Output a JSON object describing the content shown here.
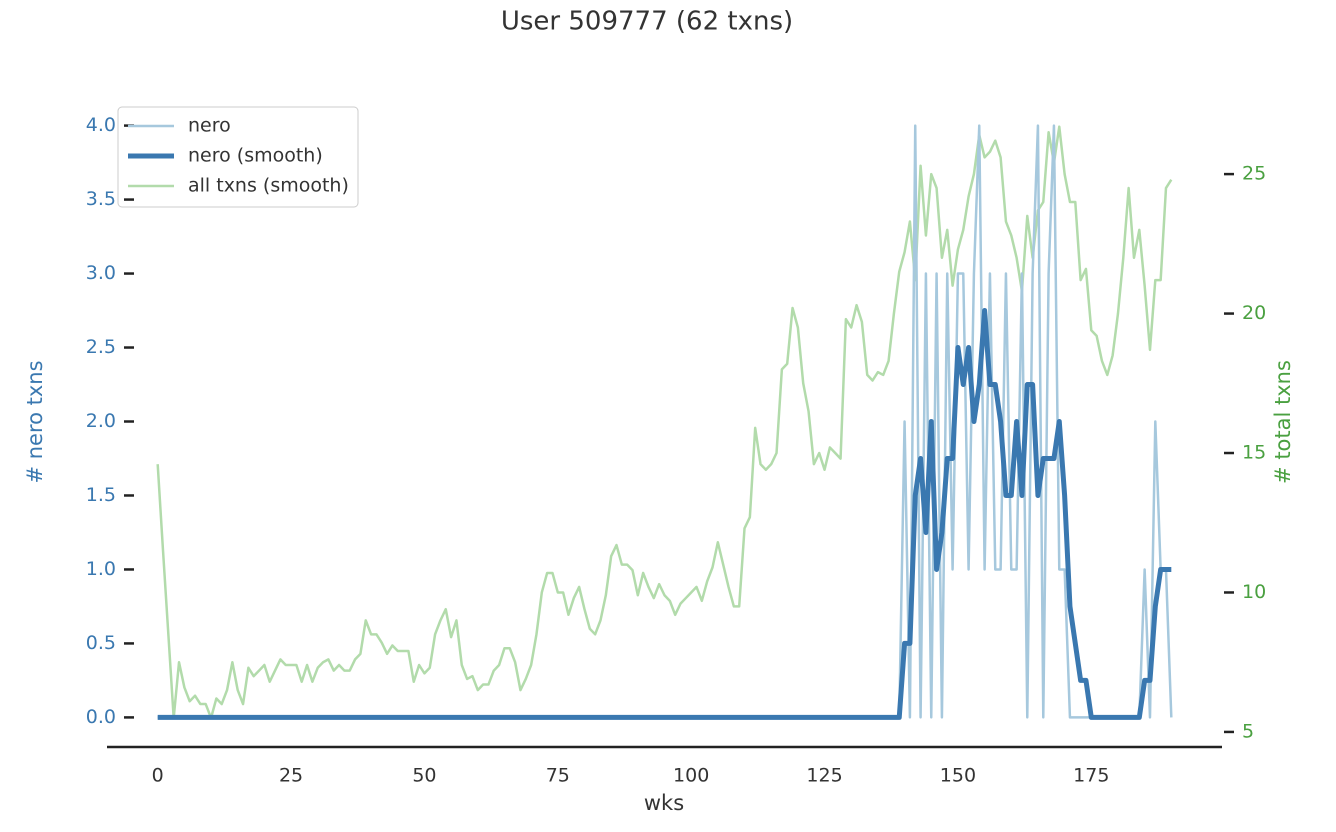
{
  "chart_data": {
    "type": "line",
    "title": "User 509777 (62 txns)",
    "xlabel": "wks",
    "ylabel": "# nero txns",
    "y2label": "# total txns",
    "ylabel_color": "#3a78b0",
    "y2label_color": "#4aa040",
    "xlim": [
      -9.5,
      199.5
    ],
    "ylim": [
      -0.2,
      4.2
    ],
    "y2lim": [
      4.46,
      27.8
    ],
    "xticks": [
      0,
      25,
      50,
      75,
      100,
      125,
      150,
      175
    ],
    "yticks": [
      {
        "value": 0,
        "label": "0.0"
      },
      0.5,
      {
        "value": 1,
        "label": "1.0"
      },
      1.5,
      {
        "value": 2,
        "label": "2.0"
      },
      2.5,
      {
        "value": 3,
        "label": "3.0"
      },
      3.5,
      {
        "value": 4,
        "label": "4.0"
      }
    ],
    "y2ticks": [
      5,
      10,
      15,
      20,
      25
    ],
    "legend": "upper left",
    "x": [
      0,
      1,
      2,
      3,
      4,
      5,
      6,
      7,
      8,
      9,
      10,
      11,
      12,
      13,
      14,
      15,
      16,
      17,
      18,
      19,
      20,
      21,
      22,
      23,
      24,
      25,
      26,
      27,
      28,
      29,
      30,
      31,
      32,
      33,
      34,
      35,
      36,
      37,
      38,
      39,
      40,
      41,
      42,
      43,
      44,
      45,
      46,
      47,
      48,
      49,
      50,
      51,
      52,
      53,
      54,
      55,
      56,
      57,
      58,
      59,
      60,
      61,
      62,
      63,
      64,
      65,
      66,
      67,
      68,
      69,
      70,
      71,
      72,
      73,
      74,
      75,
      76,
      77,
      78,
      79,
      80,
      81,
      82,
      83,
      84,
      85,
      86,
      87,
      88,
      89,
      90,
      91,
      92,
      93,
      94,
      95,
      96,
      97,
      98,
      99,
      100,
      101,
      102,
      103,
      104,
      105,
      106,
      107,
      108,
      109,
      110,
      111,
      112,
      113,
      114,
      115,
      116,
      117,
      118,
      119,
      120,
      121,
      122,
      123,
      124,
      125,
      126,
      127,
      128,
      129,
      130,
      131,
      132,
      133,
      134,
      135,
      136,
      137,
      138,
      139,
      140,
      141,
      142,
      143,
      144,
      145,
      146,
      147,
      148,
      149,
      150,
      151,
      152,
      153,
      154,
      155,
      156,
      157,
      158,
      159,
      160,
      161,
      162,
      163,
      164,
      165,
      166,
      167,
      168,
      169,
      170,
      171,
      172,
      173,
      174,
      175,
      176,
      177,
      178,
      179,
      180,
      181,
      182,
      183,
      184,
      185,
      186,
      187,
      188,
      189,
      190
    ],
    "series": [
      {
        "name": "nero",
        "color": "#a6c8dd",
        "linewidth": 2.5,
        "values": [
          0,
          0,
          0,
          0,
          0,
          0,
          0,
          0,
          0,
          0,
          0,
          0,
          0,
          0,
          0,
          0,
          0,
          0,
          0,
          0,
          0,
          0,
          0,
          0,
          0,
          0,
          0,
          0,
          0,
          0,
          0,
          0,
          0,
          0,
          0,
          0,
          0,
          0,
          0,
          0,
          0,
          0,
          0,
          0,
          0,
          0,
          0,
          0,
          0,
          0,
          0,
          0,
          0,
          0,
          0,
          0,
          0,
          0,
          0,
          0,
          0,
          0,
          0,
          0,
          0,
          0,
          0,
          0,
          0,
          0,
          0,
          0,
          0,
          0,
          0,
          0,
          0,
          0,
          0,
          0,
          0,
          0,
          0,
          0,
          0,
          0,
          0,
          0,
          0,
          0,
          0,
          0,
          0,
          0,
          0,
          0,
          0,
          0,
          0,
          0,
          0,
          0,
          0,
          0,
          0,
          0,
          0,
          0,
          0,
          0,
          0,
          0,
          0,
          0,
          0,
          0,
          0,
          0,
          0,
          0,
          0,
          0,
          0,
          0,
          0,
          0,
          0,
          0,
          0,
          0,
          0,
          0,
          0,
          0,
          0,
          0,
          0,
          0,
          0,
          0,
          2,
          0,
          4,
          0,
          3,
          0,
          3,
          0,
          3,
          1,
          3,
          3,
          1,
          3,
          4,
          1,
          3,
          1,
          1,
          3,
          1,
          1,
          3,
          0,
          3,
          4,
          0,
          3,
          4,
          1,
          1,
          0,
          0,
          0,
          0,
          0,
          0,
          0,
          0,
          0,
          0,
          0,
          0,
          0,
          0,
          1,
          0,
          2,
          1,
          1,
          0
        ]
      },
      {
        "name": "nero (smooth)",
        "color": "#3a78b0",
        "linewidth": 5,
        "values": [
          0,
          0,
          0,
          0,
          0,
          0,
          0,
          0,
          0,
          0,
          0,
          0,
          0,
          0,
          0,
          0,
          0,
          0,
          0,
          0,
          0,
          0,
          0,
          0,
          0,
          0,
          0,
          0,
          0,
          0,
          0,
          0,
          0,
          0,
          0,
          0,
          0,
          0,
          0,
          0,
          0,
          0,
          0,
          0,
          0,
          0,
          0,
          0,
          0,
          0,
          0,
          0,
          0,
          0,
          0,
          0,
          0,
          0,
          0,
          0,
          0,
          0,
          0,
          0,
          0,
          0,
          0,
          0,
          0,
          0,
          0,
          0,
          0,
          0,
          0,
          0,
          0,
          0,
          0,
          0,
          0,
          0,
          0,
          0,
          0,
          0,
          0,
          0,
          0,
          0,
          0,
          0,
          0,
          0,
          0,
          0,
          0,
          0,
          0,
          0,
          0,
          0,
          0,
          0,
          0,
          0,
          0,
          0,
          0,
          0,
          0,
          0,
          0,
          0,
          0,
          0,
          0,
          0,
          0,
          0,
          0,
          0,
          0,
          0,
          0,
          0,
          0,
          0,
          0,
          0,
          0,
          0,
          0,
          0,
          0,
          0,
          0,
          0,
          0,
          0,
          0.5,
          0.5,
          1.5,
          1.75,
          1.25,
          2.0,
          1.0,
          1.25,
          1.75,
          1.75,
          2.5,
          2.25,
          2.5,
          2.0,
          2.25,
          2.75,
          2.25,
          2.25,
          2.0,
          1.5,
          1.5,
          2.0,
          1.5,
          2.25,
          2.25,
          1.5,
          1.75,
          1.75,
          1.75,
          2.0,
          1.5,
          0.75,
          0.5,
          0.25,
          0.25,
          0,
          0,
          0,
          0,
          0,
          0,
          0,
          0,
          0,
          0,
          0.25,
          0.25,
          0.75,
          1.0,
          1.0,
          1.0
        ]
      },
      {
        "name": "all txns (smooth)",
        "color": "#b2dbab",
        "linewidth": 2.5,
        "axis": "y2",
        "values": [
          14.6,
          11.5,
          8.5,
          5.5,
          7.5,
          6.6,
          6.1,
          6.3,
          6.0,
          6.0,
          5.5,
          6.2,
          6.0,
          6.5,
          7.5,
          6.5,
          6.0,
          7.3,
          7.0,
          7.2,
          7.4,
          6.8,
          7.2,
          7.6,
          7.4,
          7.4,
          7.4,
          6.8,
          7.4,
          6.8,
          7.3,
          7.5,
          7.6,
          7.2,
          7.4,
          7.2,
          7.2,
          7.6,
          7.8,
          9.0,
          8.5,
          8.5,
          8.2,
          7.8,
          8.1,
          7.9,
          7.9,
          7.9,
          6.8,
          7.4,
          7.1,
          7.3,
          8.5,
          9.0,
          9.4,
          8.4,
          9.0,
          7.4,
          6.9,
          7.0,
          6.5,
          6.7,
          6.7,
          7.2,
          7.4,
          8.0,
          8.0,
          7.5,
          6.5,
          6.9,
          7.4,
          8.5,
          10.0,
          10.7,
          10.7,
          10.0,
          10.0,
          9.2,
          9.8,
          10.2,
          9.4,
          8.7,
          8.5,
          9.0,
          9.9,
          11.3,
          11.7,
          11.0,
          11.0,
          10.8,
          9.9,
          10.7,
          10.2,
          9.8,
          10.3,
          9.9,
          9.7,
          9.2,
          9.6,
          9.8,
          10.0,
          10.2,
          9.7,
          10.4,
          10.9,
          11.8,
          11.0,
          10.2,
          9.5,
          9.5,
          12.3,
          12.7,
          15.9,
          14.6,
          14.4,
          14.6,
          15.0,
          18.0,
          18.2,
          20.2,
          19.5,
          17.5,
          16.5,
          14.6,
          15.0,
          14.4,
          15.2,
          15.0,
          14.8,
          19.8,
          19.5,
          20.3,
          19.7,
          17.8,
          17.6,
          17.9,
          17.8,
          18.3,
          20.0,
          21.5,
          22.2,
          23.3,
          21.2,
          25.3,
          22.8,
          25.0,
          24.5,
          22.0,
          23.0,
          21.0,
          22.3,
          23.0,
          24.2,
          25.0,
          26.4,
          25.6,
          25.8,
          26.2,
          25.6,
          23.3,
          22.8,
          22.0,
          20.8,
          23.5,
          22.0,
          23.7,
          24.0,
          26.5,
          25.4,
          26.7,
          25.0,
          24.0,
          24.0,
          21.2,
          21.6,
          19.4,
          19.2,
          18.3,
          17.8,
          18.5,
          20.0,
          22.0,
          24.5,
          22.0,
          23.0,
          21.0,
          18.7,
          21.2,
          21.2,
          24.5,
          24.8
        ]
      }
    ]
  }
}
